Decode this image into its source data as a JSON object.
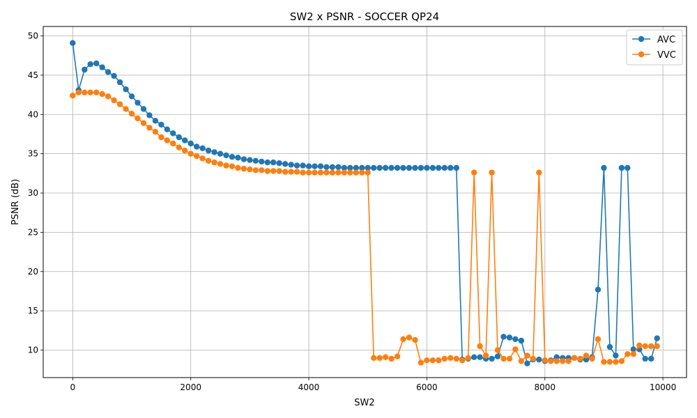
{
  "chart_data": {
    "type": "line",
    "title": "SW2 x PSNR - SOCCER QP24",
    "xlabel": "SW2",
    "ylabel": "PSNR (dB)",
    "xlim": [
      -500,
      10400
    ],
    "ylim": [
      6.5,
      51.2
    ],
    "xticks": [
      0,
      2000,
      4000,
      6000,
      8000,
      10000
    ],
    "yticks": [
      10,
      15,
      20,
      25,
      30,
      35,
      40,
      45,
      50
    ],
    "grid": true,
    "legend": "top-right",
    "series": [
      {
        "name": "AVC",
        "color": "#1f77b4",
        "x": [
          0,
          100,
          200,
          300,
          400,
          500,
          600,
          700,
          800,
          900,
          1000,
          1100,
          1200,
          1300,
          1400,
          1500,
          1600,
          1700,
          1800,
          1900,
          2000,
          2100,
          2200,
          2300,
          2400,
          2500,
          2600,
          2700,
          2800,
          2900,
          3000,
          3100,
          3200,
          3300,
          3400,
          3500,
          3600,
          3700,
          3800,
          3900,
          4000,
          4100,
          4200,
          4300,
          4400,
          4500,
          4600,
          4700,
          4800,
          4900,
          5000,
          5100,
          5200,
          5300,
          5400,
          5500,
          5600,
          5700,
          5800,
          5900,
          6000,
          6100,
          6200,
          6300,
          6400,
          6500,
          6600,
          6700,
          6800,
          6900,
          7000,
          7100,
          7200,
          7300,
          7400,
          7500,
          7600,
          7700,
          7800,
          7900,
          8000,
          8100,
          8200,
          8300,
          8400,
          8500,
          8600,
          8700,
          8800,
          8900,
          9000,
          9100,
          9200,
          9300,
          9400,
          9500,
          9600,
          9700,
          9800,
          9900
        ],
        "y": [
          49.1,
          43.1,
          45.7,
          46.4,
          46.5,
          46.0,
          45.4,
          44.9,
          44.1,
          43.2,
          42.3,
          41.5,
          40.7,
          39.9,
          39.2,
          38.7,
          38.1,
          37.6,
          37.1,
          36.7,
          36.3,
          35.9,
          35.7,
          35.4,
          35.2,
          35.0,
          34.8,
          34.6,
          34.5,
          34.3,
          34.2,
          34.1,
          34.0,
          33.9,
          33.9,
          33.8,
          33.7,
          33.6,
          33.5,
          33.5,
          33.4,
          33.4,
          33.4,
          33.3,
          33.3,
          33.3,
          33.2,
          33.2,
          33.2,
          33.2,
          33.2,
          33.2,
          33.2,
          33.2,
          33.2,
          33.2,
          33.2,
          33.2,
          33.2,
          33.2,
          33.2,
          33.2,
          33.2,
          33.2,
          33.2,
          33.2,
          8.8,
          8.9,
          9.1,
          9.1,
          8.9,
          8.9,
          9.2,
          11.7,
          11.6,
          11.4,
          11.2,
          8.3,
          8.8,
          8.8,
          8.6,
          8.7,
          9.1,
          9.0,
          9.0,
          9.0,
          8.8,
          8.8,
          9.1,
          17.7,
          33.2,
          10.4,
          9.3,
          33.2,
          33.2,
          10.1,
          10.1,
          8.9,
          8.9,
          11.5
        ]
      },
      {
        "name": "VVC",
        "color": "#ff7f0e",
        "x": [
          0,
          100,
          200,
          300,
          400,
          500,
          600,
          700,
          800,
          900,
          1000,
          1100,
          1200,
          1300,
          1400,
          1500,
          1600,
          1700,
          1800,
          1900,
          2000,
          2100,
          2200,
          2300,
          2400,
          2500,
          2600,
          2700,
          2800,
          2900,
          3000,
          3100,
          3200,
          3300,
          3400,
          3500,
          3600,
          3700,
          3800,
          3900,
          4000,
          4100,
          4200,
          4300,
          4400,
          4500,
          4600,
          4700,
          4800,
          4900,
          5000,
          5100,
          5200,
          5300,
          5400,
          5500,
          5600,
          5700,
          5800,
          5900,
          6000,
          6100,
          6200,
          6300,
          6400,
          6500,
          6600,
          6700,
          6800,
          6900,
          7000,
          7100,
          7200,
          7300,
          7400,
          7500,
          7600,
          7700,
          7800,
          7900,
          8000,
          8100,
          8200,
          8300,
          8400,
          8500,
          8600,
          8700,
          8800,
          8900,
          9000,
          9100,
          9200,
          9300,
          9400,
          9500,
          9600,
          9700,
          9800,
          9900
        ],
        "y": [
          42.4,
          42.8,
          42.8,
          42.8,
          42.8,
          42.6,
          42.3,
          41.8,
          41.3,
          40.7,
          40.1,
          39.5,
          38.9,
          38.3,
          37.8,
          37.1,
          36.7,
          36.3,
          35.8,
          35.4,
          35.0,
          34.7,
          34.4,
          34.1,
          33.9,
          33.7,
          33.5,
          33.4,
          33.2,
          33.1,
          33.0,
          32.9,
          32.9,
          32.8,
          32.8,
          32.8,
          32.7,
          32.7,
          32.7,
          32.6,
          32.6,
          32.6,
          32.6,
          32.6,
          32.6,
          32.6,
          32.6,
          32.6,
          32.6,
          32.6,
          32.6,
          9.0,
          9.0,
          9.1,
          8.9,
          9.2,
          11.4,
          11.6,
          11.3,
          8.4,
          8.7,
          8.7,
          8.7,
          8.9,
          9.0,
          8.9,
          8.7,
          9.0,
          32.6,
          10.5,
          9.3,
          32.6,
          10.0,
          8.9,
          8.9,
          10.1,
          8.6,
          9.3,
          8.9,
          32.6,
          8.7,
          8.6,
          8.6,
          8.6,
          8.6,
          9.0,
          8.9,
          9.3,
          8.9,
          11.4,
          8.5,
          8.5,
          8.5,
          8.6,
          9.5,
          9.5,
          10.6,
          10.5,
          10.5,
          10.5
        ]
      }
    ]
  }
}
